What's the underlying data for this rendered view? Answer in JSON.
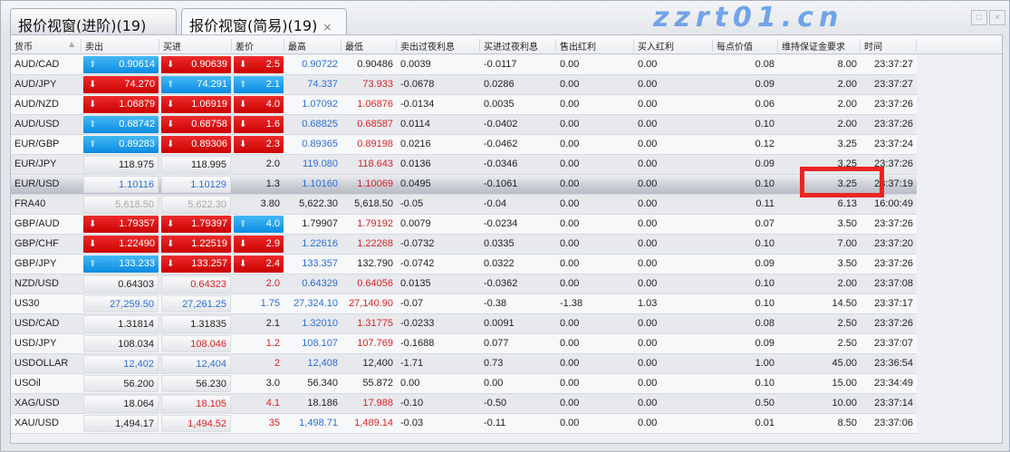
{
  "tabs": [
    {
      "label": "报价视窗(进阶)(19)"
    },
    {
      "label": "报价视窗(简易)(19)",
      "close": "×"
    }
  ],
  "window_buttons": {
    "maximize": "□",
    "close": "×"
  },
  "columns": [
    "货币",
    "卖出",
    "买进",
    "差价",
    "最高",
    "最低",
    "卖出过夜利息",
    "买进过夜利息",
    "售出红利",
    "买入红利",
    "每点价值",
    "维持保证金要求",
    "时间"
  ],
  "sort_indicator": "▲",
  "colors": {
    "up": "#0a8be0",
    "down": "#d00000",
    "blue_text": "#2b6fd6",
    "red_text": "#d92323",
    "highlight_box": "#ec2424"
  },
  "selected_row": "EUR/USD",
  "rows": [
    {
      "symbol": "AUD/CAD",
      "sell": "0.90614",
      "sell_s": "up",
      "buy": "0.90639",
      "buy_s": "down",
      "spread": "2.5",
      "spread_s": "down",
      "high": "0.90722",
      "high_c": "blue",
      "low": "0.90486",
      "low_c": "black",
      "sell_swap": "0.0039",
      "buy_swap": "-0.0117",
      "sell_div": "0.00",
      "buy_div": "0.00",
      "pip": "0.08",
      "margin": "8.00",
      "time": "23:37:27"
    },
    {
      "symbol": "AUD/JPY",
      "sell": "74.270",
      "sell_s": "down",
      "buy": "74.291",
      "buy_s": "up",
      "spread": "2.1",
      "spread_s": "up",
      "high": "74.337",
      "high_c": "blue",
      "low": "73.933",
      "low_c": "red",
      "sell_swap": "-0.0678",
      "buy_swap": "0.0286",
      "sell_div": "0.00",
      "buy_div": "0.00",
      "pip": "0.09",
      "margin": "2.00",
      "time": "23:37:27"
    },
    {
      "symbol": "AUD/NZD",
      "sell": "1.06879",
      "sell_s": "down",
      "buy": "1.06919",
      "buy_s": "down",
      "spread": "4.0",
      "spread_s": "down",
      "high": "1.07092",
      "high_c": "blue",
      "low": "1.06876",
      "low_c": "red",
      "sell_swap": "-0.0134",
      "buy_swap": "0.0035",
      "sell_div": "0.00",
      "buy_div": "0.00",
      "pip": "0.06",
      "margin": "2.00",
      "time": "23:37:26"
    },
    {
      "symbol": "AUD/USD",
      "sell": "0.68742",
      "sell_s": "up",
      "buy": "0.68758",
      "buy_s": "down",
      "spread": "1.6",
      "spread_s": "down",
      "high": "0.68825",
      "high_c": "blue",
      "low": "0.68587",
      "low_c": "red",
      "sell_swap": "0.0114",
      "buy_swap": "-0.0402",
      "sell_div": "0.00",
      "buy_div": "0.00",
      "pip": "0.10",
      "margin": "2.00",
      "time": "23:37:26"
    },
    {
      "symbol": "EUR/GBP",
      "sell": "0.89283",
      "sell_s": "up",
      "buy": "0.89306",
      "buy_s": "down",
      "spread": "2.3",
      "spread_s": "down",
      "high": "0.89365",
      "high_c": "blue",
      "low": "0.89198",
      "low_c": "red",
      "sell_swap": "0.0216",
      "buy_swap": "-0.0462",
      "sell_div": "0.00",
      "buy_div": "0.00",
      "pip": "0.12",
      "margin": "3.25",
      "time": "23:37:24"
    },
    {
      "symbol": "EUR/JPY",
      "sell": "118.975",
      "sell_s": "black",
      "buy": "118.995",
      "buy_s": "black",
      "spread": "2.0",
      "spread_s": "black",
      "high": "119.080",
      "high_c": "blue",
      "low": "118.643",
      "low_c": "red",
      "sell_swap": "0.0136",
      "buy_swap": "-0.0346",
      "sell_div": "0.00",
      "buy_div": "0.00",
      "pip": "0.09",
      "margin": "3.25",
      "time": "23:37:26"
    },
    {
      "symbol": "EUR/USD",
      "sell": "1.10116",
      "sell_s": "blue",
      "buy": "1.10129",
      "buy_s": "blue",
      "spread": "1.3",
      "spread_s": "black",
      "high": "1.10160",
      "high_c": "blue",
      "low": "1.10069",
      "low_c": "red",
      "sell_swap": "0.0495",
      "buy_swap": "-0.1061",
      "sell_div": "0.00",
      "buy_div": "0.00",
      "pip": "0.10",
      "margin": "3.25",
      "time": "23:37:19"
    },
    {
      "symbol": "FRA40",
      "sell": "5,618.50",
      "sell_s": "grey",
      "buy": "5,622.30",
      "buy_s": "grey",
      "spread": "3.80",
      "spread_s": "black",
      "high": "5,622.30",
      "high_c": "black",
      "low": "5,618.50",
      "low_c": "black",
      "sell_swap": "-0.05",
      "buy_swap": "-0.04",
      "sell_div": "0.00",
      "buy_div": "0.00",
      "pip": "0.11",
      "margin": "6.13",
      "time": "16:00:49"
    },
    {
      "symbol": "GBP/AUD",
      "sell": "1.79357",
      "sell_s": "down",
      "buy": "1.79397",
      "buy_s": "down",
      "spread": "4.0",
      "spread_s": "up",
      "high": "1.79907",
      "high_c": "black",
      "low": "1.79192",
      "low_c": "red",
      "sell_swap": "0.0079",
      "buy_swap": "-0.0234",
      "sell_div": "0.00",
      "buy_div": "0.00",
      "pip": "0.07",
      "margin": "3.50",
      "time": "23:37:26"
    },
    {
      "symbol": "GBP/CHF",
      "sell": "1.22490",
      "sell_s": "down",
      "buy": "1.22519",
      "buy_s": "down",
      "spread": "2.9",
      "spread_s": "down",
      "high": "1.22616",
      "high_c": "blue",
      "low": "1.22268",
      "low_c": "red",
      "sell_swap": "-0.0732",
      "buy_swap": "0.0335",
      "sell_div": "0.00",
      "buy_div": "0.00",
      "pip": "0.10",
      "margin": "7.00",
      "time": "23:37:20"
    },
    {
      "symbol": "GBP/JPY",
      "sell": "133.233",
      "sell_s": "up",
      "buy": "133.257",
      "buy_s": "down",
      "spread": "2.4",
      "spread_s": "down",
      "high": "133.357",
      "high_c": "blue",
      "low": "132.790",
      "low_c": "black",
      "sell_swap": "-0.0742",
      "buy_swap": "0.0322",
      "sell_div": "0.00",
      "buy_div": "0.00",
      "pip": "0.09",
      "margin": "3.50",
      "time": "23:37:26"
    },
    {
      "symbol": "NZD/USD",
      "sell": "0.64303",
      "sell_s": "black",
      "buy": "0.64323",
      "buy_s": "red",
      "spread": "2.0",
      "spread_s": "red",
      "high": "0.64329",
      "high_c": "blue",
      "low": "0.64056",
      "low_c": "red",
      "sell_swap": "0.0135",
      "buy_swap": "-0.0362",
      "sell_div": "0.00",
      "buy_div": "0.00",
      "pip": "0.10",
      "margin": "2.00",
      "time": "23:37:08"
    },
    {
      "symbol": "US30",
      "sell": "27,259.50",
      "sell_s": "blue",
      "buy": "27,261.25",
      "buy_s": "blue",
      "spread": "1.75",
      "spread_s": "blue",
      "high": "27,324.10",
      "high_c": "blue",
      "low": "27,140.90",
      "low_c": "red",
      "sell_swap": "-0.07",
      "buy_swap": "-0.38",
      "sell_div": "-1.38",
      "buy_div": "1.03",
      "pip": "0.10",
      "margin": "14.50",
      "time": "23:37:17"
    },
    {
      "symbol": "USD/CAD",
      "sell": "1.31814",
      "sell_s": "black",
      "buy": "1.31835",
      "buy_s": "black",
      "spread": "2.1",
      "spread_s": "black",
      "high": "1.32010",
      "high_c": "blue",
      "low": "1.31775",
      "low_c": "red",
      "sell_swap": "-0.0233",
      "buy_swap": "0.0091",
      "sell_div": "0.00",
      "buy_div": "0.00",
      "pip": "0.08",
      "margin": "2.50",
      "time": "23:37:26"
    },
    {
      "symbol": "USD/JPY",
      "sell": "108.034",
      "sell_s": "black",
      "buy": "108.046",
      "buy_s": "red",
      "spread": "1.2",
      "spread_s": "red",
      "high": "108.107",
      "high_c": "blue",
      "low": "107.769",
      "low_c": "red",
      "sell_swap": "-0.1688",
      "buy_swap": "0.077",
      "sell_div": "0.00",
      "buy_div": "0.00",
      "pip": "0.09",
      "margin": "2.50",
      "time": "23:37:07"
    },
    {
      "symbol": "USDOLLAR",
      "sell": "12,402",
      "sell_s": "blue",
      "buy": "12,404",
      "buy_s": "blue",
      "spread": "2",
      "spread_s": "red",
      "high": "12,408",
      "high_c": "blue",
      "low": "12,400",
      "low_c": "black",
      "sell_swap": "-1.71",
      "buy_swap": "0.73",
      "sell_div": "0.00",
      "buy_div": "0.00",
      "pip": "1.00",
      "margin": "45.00",
      "time": "23:36:54"
    },
    {
      "symbol": "USOil",
      "sell": "56.200",
      "sell_s": "black",
      "buy": "56.230",
      "buy_s": "black",
      "spread": "3.0",
      "spread_s": "black",
      "high": "56.340",
      "high_c": "black",
      "low": "55.872",
      "low_c": "black",
      "sell_swap": "0.00",
      "buy_swap": "0.00",
      "sell_div": "0.00",
      "buy_div": "0.00",
      "pip": "0.10",
      "margin": "15.00",
      "time": "23:34:49"
    },
    {
      "symbol": "XAG/USD",
      "sell": "18.064",
      "sell_s": "black",
      "buy": "18.105",
      "buy_s": "red",
      "spread": "4.1",
      "spread_s": "red",
      "high": "18.186",
      "high_c": "black",
      "low": "17.988",
      "low_c": "red",
      "sell_swap": "-0.10",
      "buy_swap": "-0.50",
      "sell_div": "0.00",
      "buy_div": "0.00",
      "pip": "0.50",
      "margin": "10.00",
      "time": "23:37:14"
    },
    {
      "symbol": "XAU/USD",
      "sell": "1,494.17",
      "sell_s": "black",
      "buy": "1,494.52",
      "buy_s": "red",
      "spread": "35",
      "spread_s": "red",
      "high": "1,498.71",
      "high_c": "blue",
      "low": "1,489.14",
      "low_c": "red",
      "sell_swap": "-0.03",
      "buy_swap": "-0.11",
      "sell_div": "0.00",
      "buy_div": "0.00",
      "pip": "0.01",
      "margin": "8.50",
      "time": "23:37:06"
    }
  ],
  "watermark": "zzrt01.cn"
}
